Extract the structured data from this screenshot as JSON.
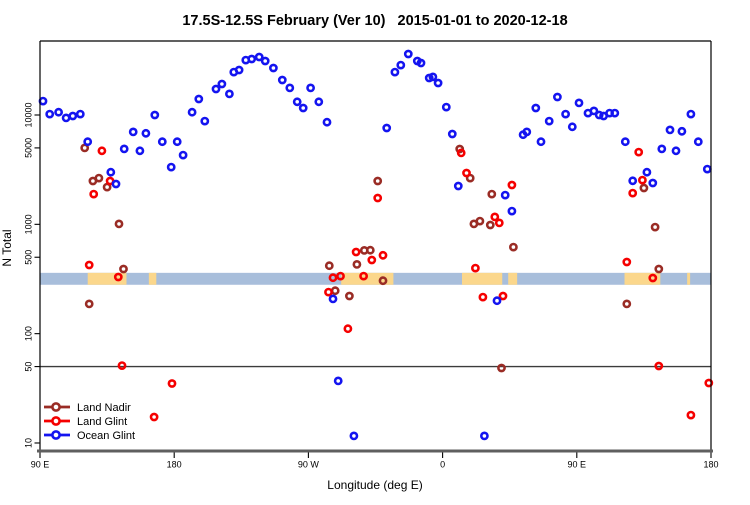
{
  "title": "17.5S-12.5S February (Ver 10)   2015-01-01 to 2020-12-18",
  "chart_data": {
    "type": "scatter",
    "title": "17.5S-12.5S February (Ver 10)   2015-01-01 to 2020-12-18",
    "xlabel": "Longitude (deg E)",
    "ylabel": "N Total",
    "x_axis": {
      "range": [
        90,
        540
      ],
      "ticks": [
        {
          "deg": 90,
          "label": "90 E"
        },
        {
          "deg": 180,
          "label": "180"
        },
        {
          "deg": 270,
          "label": "90 W"
        },
        {
          "deg": 360,
          "label": "0"
        },
        {
          "deg": 450,
          "label": "90 E"
        },
        {
          "deg": 540,
          "label": "180"
        }
      ]
    },
    "y_axis": {
      "scale": "log",
      "ticks": [
        "10",
        "50",
        "100",
        "500",
        "1000",
        "5000",
        "10000"
      ],
      "tick_values": [
        10,
        50,
        100,
        500,
        1000,
        5000,
        10000
      ]
    },
    "reference_line_n": 50,
    "map_band": {
      "description": "latitude-band map strip drawn across plot",
      "n_range": [
        280,
        360
      ],
      "ocean_color": "#a8bedb",
      "land_color": "#fbd78c",
      "land_segments_deg": [
        [
          122,
          148
        ],
        [
          163,
          168
        ],
        [
          292,
          327
        ],
        [
          373,
          400
        ],
        [
          404,
          410
        ],
        [
          482,
          506
        ],
        [
          524,
          526
        ]
      ]
    },
    "legend": {
      "position": "bottom-left"
    },
    "series": [
      {
        "name": "Land Nadir",
        "color": "#9a2c25",
        "points": [
          [
            120,
            5000
          ],
          [
            125.5,
            2490
          ],
          [
            129.5,
            2650
          ],
          [
            135,
            2190
          ],
          [
            143,
            1010
          ],
          [
            146,
            390
          ],
          [
            123,
            187
          ],
          [
            284,
            418
          ],
          [
            288,
            247
          ],
          [
            297.5,
            221
          ],
          [
            302.5,
            430
          ],
          [
            307.5,
            577
          ],
          [
            311.5,
            580
          ],
          [
            320,
            305
          ],
          [
            316.5,
            2490
          ],
          [
            371.5,
            4890
          ],
          [
            378.5,
            2650
          ],
          [
            381,
            1010
          ],
          [
            385,
            1070
          ],
          [
            392,
            986
          ],
          [
            393,
            1890
          ],
          [
            399.5,
            48.5
          ],
          [
            407.5,
            619
          ],
          [
            495,
            2150
          ],
          [
            502.5,
            944
          ],
          [
            505,
            390
          ],
          [
            483.5,
            187
          ]
        ]
      },
      {
        "name": "Land Glint",
        "color": "#f50000",
        "points": [
          [
            131.5,
            4700
          ],
          [
            137,
            2490
          ],
          [
            126,
            1890
          ],
          [
            123,
            425
          ],
          [
            142.5,
            330
          ],
          [
            145,
            51
          ],
          [
            166.5,
            17.3
          ],
          [
            178.5,
            35
          ],
          [
            283.5,
            240
          ],
          [
            286.5,
            325
          ],
          [
            291.5,
            336
          ],
          [
            296.5,
            111
          ],
          [
            302,
            558
          ],
          [
            307,
            336
          ],
          [
            312.5,
            472
          ],
          [
            316.5,
            1740
          ],
          [
            320,
            521
          ],
          [
            372.5,
            4500
          ],
          [
            376,
            2950
          ],
          [
            382,
            398
          ],
          [
            387,
            216
          ],
          [
            395,
            1170
          ],
          [
            398,
            1030
          ],
          [
            400.5,
            221
          ],
          [
            406.5,
            2290
          ],
          [
            483.5,
            452
          ],
          [
            487.5,
            1930
          ],
          [
            491.5,
            4580
          ],
          [
            494,
            2540
          ],
          [
            501,
            323
          ],
          [
            505,
            50.6
          ],
          [
            526.5,
            18
          ],
          [
            538.5,
            35.4
          ]
        ]
      },
      {
        "name": "Ocean Glint",
        "color": "#1414f0",
        "points": [
          [
            92,
            13400
          ],
          [
            96.5,
            10200
          ],
          [
            102.5,
            10600
          ],
          [
            107.5,
            9400
          ],
          [
            112,
            9800
          ],
          [
            117,
            10200
          ],
          [
            122,
            5700
          ],
          [
            137.5,
            3000
          ],
          [
            141,
            2340
          ],
          [
            146.5,
            4900
          ],
          [
            152.5,
            7000
          ],
          [
            157,
            4700
          ],
          [
            161,
            6800
          ],
          [
            167,
            10000
          ],
          [
            172,
            5700
          ],
          [
            178,
            3340
          ],
          [
            182,
            5700
          ],
          [
            186,
            4300
          ],
          [
            192,
            10600
          ],
          [
            196.5,
            14000
          ],
          [
            200.5,
            8800
          ],
          [
            208,
            17300
          ],
          [
            212,
            19200
          ],
          [
            217,
            15600
          ],
          [
            220,
            24700
          ],
          [
            223.5,
            25800
          ],
          [
            228,
            31800
          ],
          [
            232,
            32500
          ],
          [
            237,
            33900
          ],
          [
            241,
            31200
          ],
          [
            246.5,
            26900
          ],
          [
            252.5,
            20900
          ],
          [
            257.5,
            17700
          ],
          [
            262.5,
            13200
          ],
          [
            266.5,
            11600
          ],
          [
            271.5,
            17700
          ],
          [
            277,
            13200
          ],
          [
            282.5,
            8600
          ],
          [
            322.5,
            7600
          ],
          [
            328,
            24700
          ],
          [
            332,
            28600
          ],
          [
            337,
            36100
          ],
          [
            343,
            31200
          ],
          [
            345.5,
            29900
          ],
          [
            351,
            21800
          ],
          [
            353.5,
            22300
          ],
          [
            357,
            19600
          ],
          [
            362.5,
            11800
          ],
          [
            366.5,
            6700
          ],
          [
            370.5,
            2240
          ],
          [
            286.5,
            208
          ],
          [
            290,
            37
          ],
          [
            300.5,
            11.6
          ],
          [
            388,
            11.6
          ],
          [
            396.5,
            200
          ],
          [
            402,
            1850
          ],
          [
            406.5,
            1320
          ],
          [
            414,
            6600
          ],
          [
            416.5,
            7000
          ],
          [
            422.5,
            11600
          ],
          [
            426,
            5700
          ],
          [
            431.5,
            8800
          ],
          [
            437,
            14600
          ],
          [
            442.5,
            10200
          ],
          [
            447,
            7800
          ],
          [
            451.5,
            12900
          ],
          [
            457.5,
            10400
          ],
          [
            461.5,
            10900
          ],
          [
            465,
            10000
          ],
          [
            468,
            9800
          ],
          [
            472,
            10400
          ],
          [
            475.5,
            10400
          ],
          [
            482.5,
            5700
          ],
          [
            487.5,
            2500
          ],
          [
            497,
            3000
          ],
          [
            501,
            2390
          ],
          [
            507,
            4900
          ],
          [
            512.5,
            7300
          ],
          [
            516.5,
            4700
          ],
          [
            520.5,
            7100
          ],
          [
            526.5,
            10200
          ],
          [
            531.5,
            5700
          ],
          [
            537.5,
            3200
          ]
        ]
      }
    ]
  }
}
